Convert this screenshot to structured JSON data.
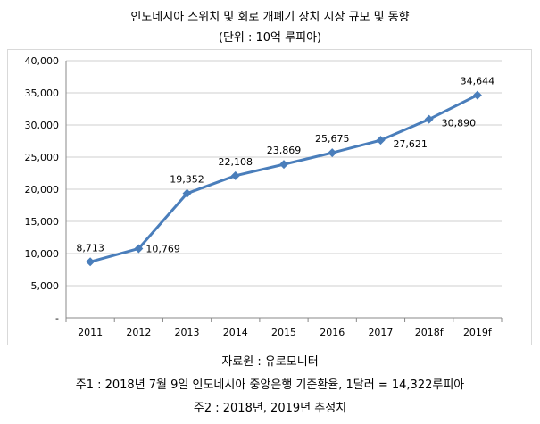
{
  "header": {
    "title": "인도네시아 스위치 및 회로 개폐기 장치 시장 규모 및 동향",
    "unit": "(단위 : 10억 루피아)"
  },
  "footer": {
    "source": "자료원 : 유로모니터",
    "note1": "주1 : 2018년 7월 9일 인도네시아 중앙은행 기준환율, 1달러 = 14,322루피아",
    "note2": "주2 : 2018년, 2019년 추정치"
  },
  "chart_data": {
    "type": "line",
    "title": "인도네시아 스위치 및 회로 개폐기 장치 시장 규모 및 동향",
    "categories": [
      "2011",
      "2012",
      "2013",
      "2014",
      "2015",
      "2016",
      "2017",
      "2018f",
      "2019f"
    ],
    "series": [
      {
        "values": [
          8713,
          10769,
          19352,
          22108,
          23869,
          25675,
          27621,
          30890,
          34644
        ],
        "labels": [
          "8,713",
          "10,769",
          "19,352",
          "22,108",
          "23,869",
          "25,675",
          "27,621",
          "30,890",
          "34,644"
        ],
        "color": "#4a7ebb"
      }
    ],
    "ylim": [
      0,
      40000
    ],
    "yticks": [
      0,
      5000,
      10000,
      15000,
      20000,
      25000,
      30000,
      35000,
      40000
    ],
    "ytick_labels": [
      "-",
      "5,000",
      "10,000",
      "15,000",
      "20,000",
      "25,000",
      "30,000",
      "35,000",
      "40,000"
    ],
    "grid": true,
    "legend": "none"
  }
}
